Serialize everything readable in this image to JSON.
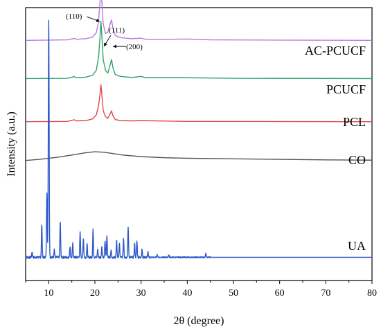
{
  "chart_data": {
    "type": "line",
    "xlabel": "2θ (degree)",
    "ylabel": "Intensity (a.u.)",
    "xlim": [
      5,
      80
    ],
    "x_ticks": [
      10,
      20,
      30,
      40,
      50,
      60,
      70,
      80
    ],
    "y_ticks_shown": false,
    "grid": false,
    "legend": "inline labels at right end of each curve",
    "series": [
      {
        "name": "AC-PCUCF",
        "color": "#b57bd9",
        "baseline": 0.88,
        "points": [
          [
            5,
            0
          ],
          [
            14,
            0.002
          ],
          [
            15.5,
            0.007
          ],
          [
            16,
            0.004
          ],
          [
            18,
            0.006
          ],
          [
            19.5,
            0.012
          ],
          [
            20.3,
            0.028
          ],
          [
            20.8,
            0.07
          ],
          [
            21.1,
            0.14
          ],
          [
            21.3,
            0.185
          ],
          [
            21.5,
            0.14
          ],
          [
            21.8,
            0.06
          ],
          [
            22.3,
            0.025
          ],
          [
            22.8,
            0.03
          ],
          [
            23.2,
            0.055
          ],
          [
            23.6,
            0.075
          ],
          [
            23.9,
            0.045
          ],
          [
            24.4,
            0.018
          ],
          [
            25.5,
            0.01
          ],
          [
            28,
            0.006
          ],
          [
            30,
            0.008
          ],
          [
            31,
            0.004
          ],
          [
            36,
            0.004
          ],
          [
            40,
            0.005
          ],
          [
            45,
            0.002
          ],
          [
            60,
            0.001
          ],
          [
            80,
            0
          ]
        ],
        "annotations": [
          {
            "text": "(110)",
            "x": 21.3
          },
          {
            "text": "(111)",
            "x": 22.3
          },
          {
            "text": "(200)",
            "x": 23.6
          }
        ]
      },
      {
        "name": "PCUCF",
        "color": "#2ea36b",
        "baseline": 0.74,
        "points": [
          [
            5,
            0
          ],
          [
            14,
            0.001
          ],
          [
            15.5,
            0.007
          ],
          [
            16,
            0.003
          ],
          [
            18,
            0.005
          ],
          [
            19.5,
            0.012
          ],
          [
            20.3,
            0.03
          ],
          [
            20.8,
            0.08
          ],
          [
            21.1,
            0.15
          ],
          [
            21.3,
            0.21
          ],
          [
            21.5,
            0.16
          ],
          [
            21.8,
            0.07
          ],
          [
            22.3,
            0.03
          ],
          [
            22.8,
            0.02
          ],
          [
            23.2,
            0.045
          ],
          [
            23.6,
            0.07
          ],
          [
            23.9,
            0.04
          ],
          [
            24.4,
            0.015
          ],
          [
            25.5,
            0.008
          ],
          [
            28,
            0.004
          ],
          [
            30,
            0.008
          ],
          [
            31,
            0.003
          ],
          [
            40,
            0.003
          ],
          [
            50,
            0.001
          ],
          [
            80,
            0
          ]
        ]
      },
      {
        "name": "PCL",
        "color": "#e04848",
        "baseline": 0.582,
        "points": [
          [
            5,
            0
          ],
          [
            14,
            0.001
          ],
          [
            15.5,
            0.007
          ],
          [
            16,
            0.003
          ],
          [
            18,
            0.004
          ],
          [
            19.5,
            0.01
          ],
          [
            20.3,
            0.025
          ],
          [
            20.8,
            0.06
          ],
          [
            21.1,
            0.1
          ],
          [
            21.3,
            0.135
          ],
          [
            21.5,
            0.1
          ],
          [
            21.8,
            0.04
          ],
          [
            22.3,
            0.018
          ],
          [
            22.8,
            0.012
          ],
          [
            23.2,
            0.025
          ],
          [
            23.6,
            0.04
          ],
          [
            23.9,
            0.022
          ],
          [
            24.4,
            0.008
          ],
          [
            25.5,
            0.004
          ],
          [
            28,
            0.003
          ],
          [
            30,
            0.004
          ],
          [
            40,
            0.001
          ],
          [
            80,
            0
          ]
        ]
      },
      {
        "name": "CO",
        "color": "#555555",
        "baseline": 0.44,
        "points": [
          [
            5,
            0
          ],
          [
            8,
            0.004
          ],
          [
            12,
            0.012
          ],
          [
            15,
            0.02
          ],
          [
            18,
            0.028
          ],
          [
            20,
            0.032
          ],
          [
            22,
            0.03
          ],
          [
            24,
            0.025
          ],
          [
            26,
            0.02
          ],
          [
            30,
            0.014
          ],
          [
            35,
            0.01
          ],
          [
            40,
            0.008
          ],
          [
            50,
            0.006
          ],
          [
            60,
            0.004
          ],
          [
            70,
            0.002
          ],
          [
            80,
            0.001
          ]
        ]
      },
      {
        "name": "UA",
        "color": "#2e59c7",
        "baseline": 0.085,
        "noise_until": 45,
        "peaks": [
          [
            6.4,
            0.02
          ],
          [
            8.5,
            0.12
          ],
          [
            9.6,
            0.24
          ],
          [
            10.0,
            0.87
          ],
          [
            11.2,
            0.03
          ],
          [
            12.5,
            0.13
          ],
          [
            14.6,
            0.04
          ],
          [
            15.2,
            0.05
          ],
          [
            16.8,
            0.09
          ],
          [
            17.5,
            0.07
          ],
          [
            18.3,
            0.05
          ],
          [
            19.6,
            0.1
          ],
          [
            20.6,
            0.03
          ],
          [
            21.5,
            0.04
          ],
          [
            22.2,
            0.06
          ],
          [
            22.6,
            0.08
          ],
          [
            23.5,
            0.03
          ],
          [
            24.7,
            0.06
          ],
          [
            25.3,
            0.05
          ],
          [
            26.2,
            0.07
          ],
          [
            27.2,
            0.11
          ],
          [
            28.6,
            0.05
          ],
          [
            29.1,
            0.06
          ],
          [
            30.2,
            0.03
          ],
          [
            31.5,
            0.02
          ],
          [
            33.5,
            0.01
          ],
          [
            36,
            0.01
          ],
          [
            44,
            0.015
          ]
        ]
      }
    ]
  }
}
